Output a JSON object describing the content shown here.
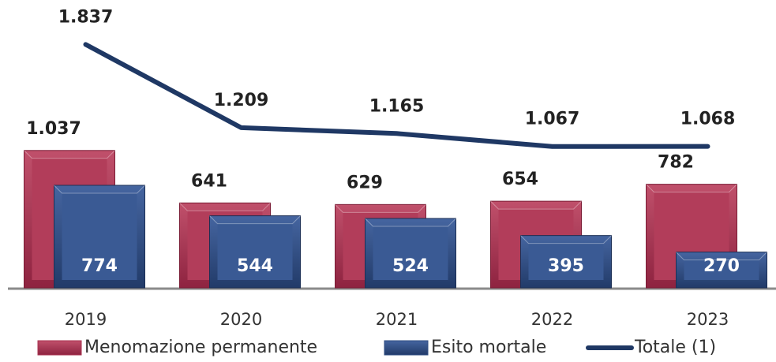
{
  "chart_data": {
    "type": "bar",
    "categories": [
      "2019",
      "2020",
      "2021",
      "2022",
      "2023"
    ],
    "series": [
      {
        "name": "Menomazione permanente",
        "color": "#a8324f",
        "values": [
          1037,
          641,
          629,
          654,
          782
        ],
        "value_labels": [
          "1.037",
          "641",
          "629",
          "654",
          "782"
        ]
      },
      {
        "name": "Esito mortale",
        "color": "#2f4d82",
        "values": [
          774,
          544,
          524,
          395,
          270
        ]
      },
      {
        "name": "Totale (1)",
        "type": "line",
        "color": "#1f3864",
        "values": [
          1837,
          1209,
          1165,
          1067,
          1068
        ],
        "value_labels": [
          "1.837",
          "1.209",
          "1.165",
          "1.067",
          "1.068"
        ]
      }
    ],
    "ylim": [
      0,
      2000
    ],
    "grid": false
  }
}
